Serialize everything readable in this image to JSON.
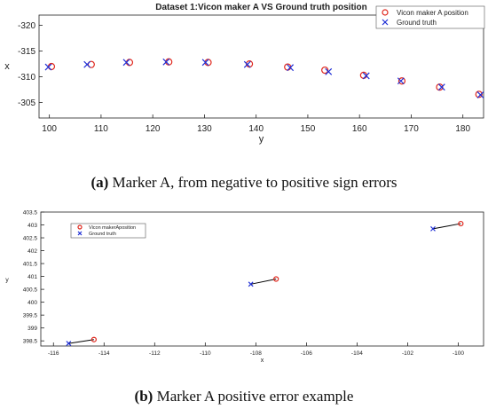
{
  "captions": {
    "a_label": "(a)",
    "a_text": "Marker A, from negative to positive sign errors",
    "b_label": "(b)",
    "b_text": "Marker A positive error example"
  },
  "colors": {
    "vicon": "#e0281e",
    "ground_truth": "#1f2fd6",
    "link": "#000000",
    "axis": "#222222"
  },
  "chart_data": [
    {
      "type": "scatter",
      "title": "Dataset 1:Vicon maker A VS Ground truth position",
      "xlabel": "y",
      "ylabel": "x",
      "xlim": [
        98,
        184
      ],
      "ylim": [
        -302,
        -322
      ],
      "y_reversed": true,
      "xticks": [
        100,
        110,
        120,
        130,
        140,
        150,
        160,
        170,
        180
      ],
      "yticks": [
        -320,
        -315,
        -310,
        -305
      ],
      "legend_position": "top-right",
      "series": [
        {
          "name": "Vicon maker A position",
          "marker": "circle",
          "x": [
            100.4,
            108.1,
            115.5,
            123.1,
            130.7,
            138.7,
            146.1,
            153.3,
            160.8,
            168.2,
            175.5,
            183.1
          ],
          "y": [
            -312.0,
            -312.4,
            -312.8,
            -312.9,
            -312.8,
            -312.5,
            -311.9,
            -311.3,
            -310.3,
            -309.2,
            -308.0,
            -306.6
          ]
        },
        {
          "name": "Ground truth",
          "marker": "x",
          "x": [
            99.8,
            107.3,
            114.9,
            122.6,
            130.2,
            138.3,
            146.6,
            154.0,
            161.3,
            168.0,
            175.9,
            183.4
          ],
          "y": [
            -311.9,
            -312.4,
            -312.8,
            -312.9,
            -312.8,
            -312.4,
            -311.8,
            -311.0,
            -310.2,
            -309.2,
            -308.0,
            -306.5
          ]
        }
      ]
    },
    {
      "type": "scatter",
      "title": "",
      "xlabel": "x",
      "ylabel": "y",
      "xlim": [
        -116.5,
        -99
      ],
      "ylim": [
        398.3,
        403.5
      ],
      "xticks": [
        -116,
        -114,
        -112,
        -110,
        -108,
        -106,
        -104,
        -102,
        -100
      ],
      "yticks": [
        398.5,
        399,
        399.5,
        400,
        400.5,
        401,
        401.5,
        402,
        402.5,
        403,
        403.5
      ],
      "legend_position": "top-left",
      "series": [
        {
          "name": "Vicon makerAposition",
          "marker": "circle",
          "x": [
            -114.4,
            -107.2,
            -99.9
          ],
          "y": [
            398.55,
            400.9,
            403.05
          ]
        },
        {
          "name": "Ground truth",
          "marker": "x",
          "x": [
            -115.4,
            -108.2,
            -101.0
          ],
          "y": [
            398.4,
            400.7,
            402.85
          ]
        }
      ],
      "connections": true
    }
  ]
}
